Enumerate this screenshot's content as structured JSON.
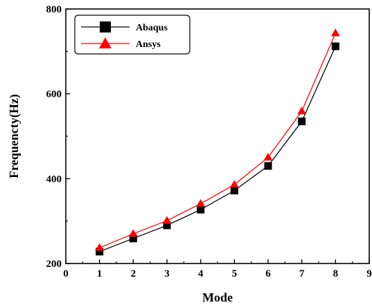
{
  "chart_data": {
    "type": "line",
    "title": "",
    "xlabel": "Mode",
    "ylabel": "Frequencty(Hz)",
    "xlim": [
      0,
      9
    ],
    "ylim": [
      200,
      800
    ],
    "xticks": [
      0,
      1,
      2,
      3,
      4,
      5,
      6,
      7,
      8,
      9
    ],
    "yticks": [
      200,
      400,
      600,
      800
    ],
    "grid": false,
    "legend_position": "top-left",
    "x": [
      1,
      2,
      3,
      4,
      5,
      6,
      7,
      8
    ],
    "series": [
      {
        "name": "Abaqus",
        "marker": "square",
        "color": "#000000",
        "values": [
          228,
          259,
          290,
          327,
          372,
          430,
          535,
          712
        ]
      },
      {
        "name": "Ansys",
        "marker": "triangle",
        "color": "#ff0000",
        "values": [
          237,
          270,
          301,
          341,
          386,
          450,
          559,
          743
        ]
      }
    ]
  }
}
